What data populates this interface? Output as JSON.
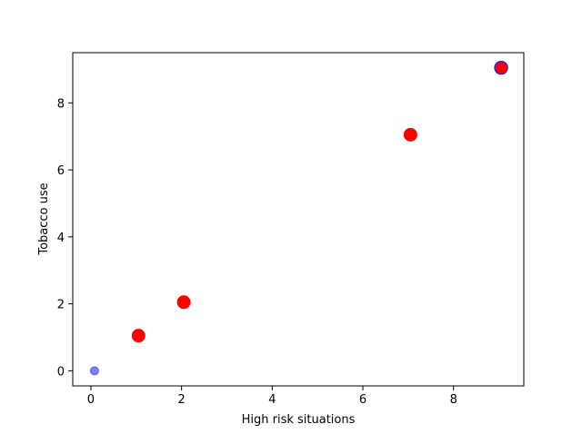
{
  "chart_data": {
    "type": "scatter",
    "title": "",
    "xlabel": "High risk situations",
    "ylabel": "Tobacco use",
    "xlim": [
      -0.4,
      9.55
    ],
    "ylim": [
      -0.45,
      9.5
    ],
    "xticks": [
      0,
      2,
      4,
      6,
      8
    ],
    "yticks": [
      0,
      2,
      4,
      6,
      8
    ],
    "xtick_labels": [
      "0",
      "2",
      "4",
      "6",
      "8"
    ],
    "ytick_labels": [
      "0",
      "2",
      "4",
      "6",
      "8"
    ],
    "grid": false,
    "legend": "none",
    "points": [
      {
        "x": 0.08,
        "y": 0.0,
        "size": "small",
        "color": "#0000ff",
        "alpha": 0.5
      },
      {
        "x": 1.05,
        "y": 1.05,
        "size": "large",
        "color": "#ff0000",
        "alpha": 1.0
      },
      {
        "x": 2.05,
        "y": 2.05,
        "size": "large",
        "color": "#ff0000",
        "alpha": 1.0
      },
      {
        "x": 7.05,
        "y": 7.05,
        "size": "large",
        "color": "#ff0000",
        "alpha": 1.0
      },
      {
        "x": 9.05,
        "y": 9.05,
        "size": "large",
        "color": "#ff0000",
        "alpha": 1.0,
        "edge_color": "#2a2ad0"
      }
    ]
  }
}
